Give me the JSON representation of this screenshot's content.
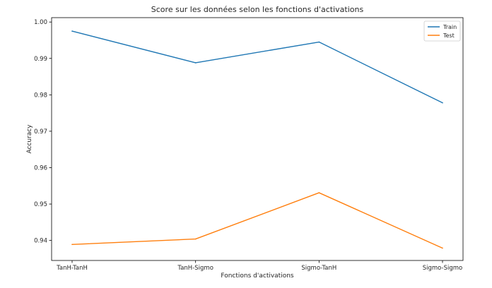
{
  "chart_data": {
    "type": "line",
    "title": "Score sur les données selon les fonctions d'activations",
    "xlabel": "Fonctions d'activations",
    "ylabel": "Accuracy",
    "categories": [
      "TanH-TanH",
      "TanH-Sigmo",
      "Sigmo-TanH",
      "Sigmo-Sigmo"
    ],
    "series": [
      {
        "name": "Train",
        "color": "#1f77b4",
        "values": [
          0.9975,
          0.9888,
          0.9945,
          0.9778
        ]
      },
      {
        "name": "Test",
        "color": "#ff7f0e",
        "values": [
          0.9389,
          0.9404,
          0.9531,
          0.9379
        ]
      }
    ],
    "ylim": [
      0.9345,
      1.0012
    ],
    "yticks": [
      0.94,
      0.95,
      0.96,
      0.97,
      0.98,
      0.99,
      1.0
    ],
    "ytick_labels": [
      "0.94",
      "0.95",
      "0.96",
      "0.97",
      "0.98",
      "0.99",
      "1.00"
    ],
    "grid": false,
    "legend_position": "top-right"
  }
}
